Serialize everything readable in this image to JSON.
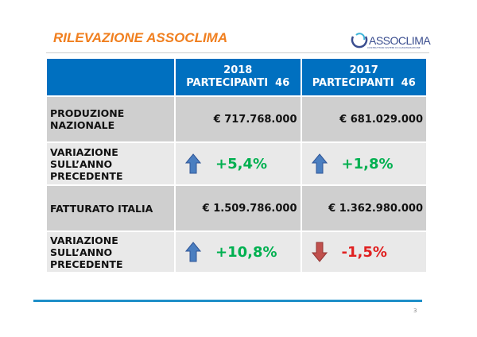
{
  "title": "RILEVAZIONE ASSOCLIMA",
  "logo": {
    "name": "ASSOCLIMA",
    "tagline": "COSTRUTTORI SISTEMI DI CLIMATIZZAZIONE"
  },
  "table": {
    "headers": [
      {
        "year": "2018",
        "participants": "PARTECIPANTI  46"
      },
      {
        "year": "2017",
        "participants": "PARTECIPANTI  46"
      }
    ],
    "rows": [
      {
        "label": "PRODUZIONE NAZIONALE",
        "values": [
          "€ 717.768.000",
          "€ 681.029.000"
        ]
      },
      {
        "label": "VARIAZIONE SULL’ANNO PRECEDENTE",
        "values": [
          "+5,4%",
          "+1,8%"
        ],
        "directions": [
          "up",
          "up"
        ]
      },
      {
        "label": "FATTURATO ITALIA",
        "values": [
          "€ 1.509.786.000",
          "€ 1.362.980.000"
        ]
      },
      {
        "label": "VARIAZIONE SULL’ANNO PRECEDENTE",
        "values": [
          "+10,8%",
          "-1,5%"
        ],
        "directions": [
          "up",
          "down"
        ]
      }
    ]
  },
  "colors": {
    "up_text": "#00b050",
    "down_text": "#e02020",
    "up_arrow": "#4a7ec0",
    "down_arrow": "#c0504d",
    "header": "#0070c0"
  },
  "page_number": "3"
}
